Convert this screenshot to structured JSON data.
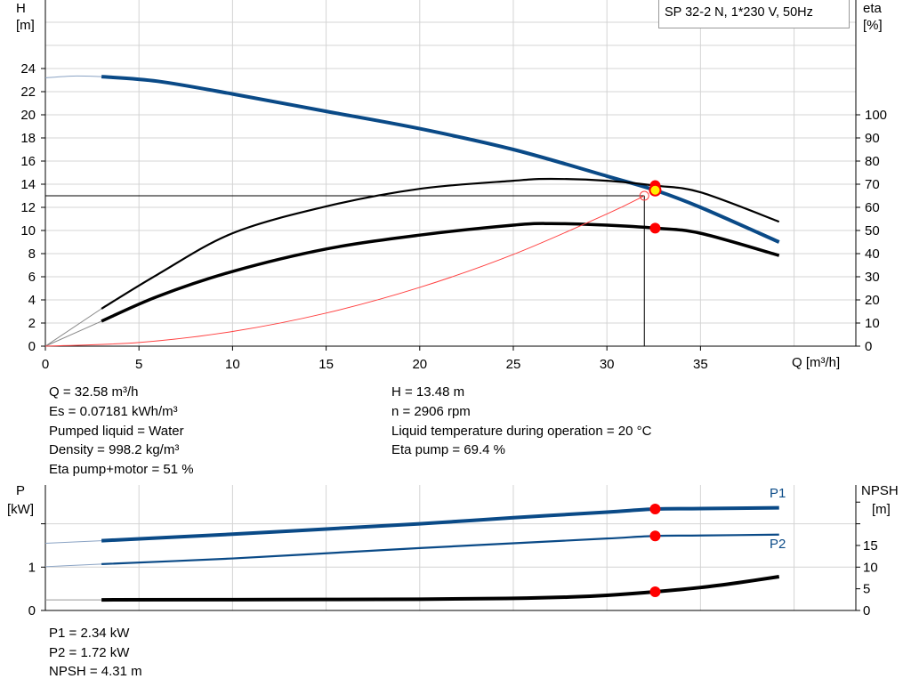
{
  "chart_data": [
    {
      "type": "line",
      "title": "SP 32-2 N, 1*230 V, 50Hz",
      "xlabel": "Q [m³/h]",
      "ylabel_left": {
        "name": "H",
        "unit": "[m]"
      },
      "ylabel_right": {
        "name": "eta",
        "unit": "[%]"
      },
      "xlim": [
        0,
        43.3
      ],
      "ylim_left": [
        0,
        30
      ],
      "ylim_right": [
        0,
        150
      ],
      "x_ticks": [
        0,
        5,
        10,
        15,
        20,
        25,
        30,
        35
      ],
      "y_ticks_left": [
        0,
        2,
        4,
        6,
        8,
        10,
        12,
        14,
        16,
        18,
        20,
        22,
        24
      ],
      "y_ticks_right": [
        0,
        10,
        20,
        30,
        40,
        50,
        60,
        70,
        80,
        90,
        100
      ],
      "grid": true,
      "series": [
        {
          "key": "H",
          "axis": "left",
          "color": "#0a4a87",
          "points": [
            [
              3,
              23.3
            ],
            [
              6,
              22.9
            ],
            [
              10,
              21.8
            ],
            [
              15,
              20.3
            ],
            [
              20,
              18.8
            ],
            [
              25,
              17.0
            ],
            [
              30,
              14.7
            ],
            [
              32.58,
              13.48
            ],
            [
              35,
              12.0
            ],
            [
              39.2,
              9.0
            ]
          ],
          "lead_in": [
            [
              0,
              23.2
            ],
            [
              1.5,
              23.35
            ],
            [
              3,
              23.3
            ]
          ]
        },
        {
          "key": "eta_pump",
          "axis": "right",
          "color": "#000000",
          "points": [
            [
              3,
              16.2
            ],
            [
              6,
              31
            ],
            [
              10,
              48.8
            ],
            [
              15,
              60.4
            ],
            [
              20,
              68
            ],
            [
              25,
              71.5
            ],
            [
              27,
              72.3
            ],
            [
              30,
              71.5
            ],
            [
              32.58,
              69.4
            ],
            [
              35,
              66.5
            ],
            [
              39.2,
              53.8
            ]
          ],
          "lead_in": [
            [
              0,
              0
            ],
            [
              3,
              16.2
            ]
          ]
        },
        {
          "key": "eta_pump_motor",
          "axis": "right",
          "color": "#000000",
          "points": [
            [
              3,
              10.8
            ],
            [
              6,
              21.5
            ],
            [
              10,
              32.3
            ],
            [
              15,
              42
            ],
            [
              20,
              48
            ],
            [
              25,
              52.3
            ],
            [
              27,
              53
            ],
            [
              30,
              52.3
            ],
            [
              32.58,
              51
            ],
            [
              35,
              48.8
            ],
            [
              39.2,
              39.2
            ]
          ],
          "lead_in": [
            [
              0,
              0
            ],
            [
              3,
              10.8
            ]
          ]
        },
        {
          "key": "system_curve",
          "axis": "left",
          "color": "#ff4040",
          "points": [
            [
              0,
              0
            ],
            [
              5,
              0.32
            ],
            [
              10,
              1.27
            ],
            [
              15,
              2.86
            ],
            [
              20,
              5.08
            ],
            [
              25,
              7.93
            ],
            [
              30,
              11.43
            ],
            [
              32,
              13.0
            ]
          ]
        }
      ],
      "duty_point": {
        "Q": 32.58,
        "H": 13.48,
        "eta_pump": 69.4,
        "eta_pump_motor": 51
      },
      "requested_point": {
        "Q": 32.0,
        "H": 13.0
      }
    },
    {
      "type": "line",
      "ylabel_left": {
        "name": "P",
        "unit": "[kW]"
      },
      "ylabel_right": {
        "name": "NPSH",
        "unit": "[m]"
      },
      "xlim": [
        0,
        43.3
      ],
      "ylim_left": [
        0,
        2.9
      ],
      "ylim_right": [
        0,
        29
      ],
      "y_ticks_left": [
        0,
        1,
        2
      ],
      "y_tick_labels_left": [
        "0",
        "1",
        ""
      ],
      "y_ticks_right": [
        0,
        5,
        10,
        15,
        20,
        25
      ],
      "y_tick_labels_right": [
        "0",
        "5",
        "10",
        "15",
        "",
        ""
      ],
      "grid": true,
      "series": [
        {
          "key": "P1",
          "name": "P1",
          "axis": "left",
          "color": "#0a4a87",
          "points": [
            [
              3,
              1.61
            ],
            [
              10,
              1.76
            ],
            [
              15,
              1.88
            ],
            [
              20,
              2.0
            ],
            [
              25,
              2.14
            ],
            [
              30,
              2.27
            ],
            [
              32.58,
              2.34
            ],
            [
              35,
              2.35
            ],
            [
              39.2,
              2.37
            ]
          ],
          "lead_in": [
            [
              0,
              1.55
            ],
            [
              3,
              1.61
            ]
          ]
        },
        {
          "key": "P2",
          "name": "P2",
          "axis": "left",
          "color": "#0a4a87",
          "points": [
            [
              3,
              1.07
            ],
            [
              10,
              1.2
            ],
            [
              15,
              1.32
            ],
            [
              20,
              1.44
            ],
            [
              25,
              1.55
            ],
            [
              30,
              1.66
            ],
            [
              32.58,
              1.72
            ],
            [
              35,
              1.73
            ],
            [
              39.2,
              1.75
            ]
          ],
          "lead_in": [
            [
              0,
              1.01
            ],
            [
              3,
              1.07
            ]
          ]
        },
        {
          "key": "NPSH",
          "axis": "right",
          "color": "#000000",
          "points": [
            [
              3,
              2.45
            ],
            [
              10,
              2.5
            ],
            [
              20,
              2.6
            ],
            [
              25,
              2.8
            ],
            [
              28,
              3.1
            ],
            [
              30,
              3.5
            ],
            [
              32.58,
              4.31
            ],
            [
              35,
              5.3
            ],
            [
              37,
              6.4
            ],
            [
              39.2,
              7.8
            ]
          ],
          "lead_in": [
            [
              0,
              2.45
            ],
            [
              3,
              2.45
            ]
          ]
        }
      ],
      "duty_point": {
        "Q": 32.58,
        "P1": 2.34,
        "P2": 1.72,
        "NPSH": 4.31
      }
    }
  ],
  "colors": {
    "blue": "#0a4a87",
    "marker": "#ff0000",
    "marker_fill": "#ffee00",
    "grid": "#d4d4d4"
  },
  "info": {
    "left": [
      "Q = 32.58 m³/h",
      "Es = 0.07181 kWh/m³",
      "Pumped liquid = Water",
      "Density = 998.2 kg/m³",
      "Eta pump+motor = 51 %"
    ],
    "right": [
      "H = 13.48 m",
      "n = 2906 rpm",
      "Liquid temperature during operation = 20 °C",
      "Eta pump = 69.4 %"
    ],
    "power": [
      "P1 = 2.34 kW",
      "P2 = 1.72 kW",
      "NPSH = 4.31 m"
    ]
  }
}
